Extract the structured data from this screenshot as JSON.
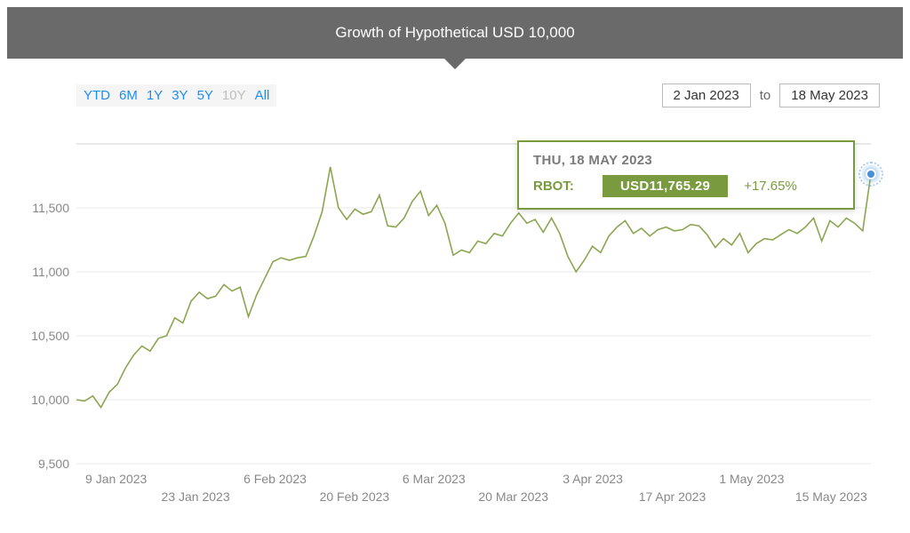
{
  "title": "Growth of Hypothetical USD 10,000",
  "range_buttons": [
    {
      "label": "YTD",
      "active": true,
      "disabled": false
    },
    {
      "label": "6M",
      "active": false,
      "disabled": false
    },
    {
      "label": "1Y",
      "active": false,
      "disabled": false
    },
    {
      "label": "3Y",
      "active": false,
      "disabled": false
    },
    {
      "label": "5Y",
      "active": false,
      "disabled": false
    },
    {
      "label": "10Y",
      "active": false,
      "disabled": true
    },
    {
      "label": "All",
      "active": false,
      "disabled": false
    }
  ],
  "date_from": "2 Jan 2023",
  "date_to_label": "to",
  "date_to": "18 May 2023",
  "chart": {
    "type": "line",
    "series_name": "RBOT",
    "line_color": "#8aa650",
    "line_width": 1.6,
    "background_color": "#ffffff",
    "grid_color": "#e8e8e8",
    "axis_text_color": "#888888",
    "axis_fontsize": 14,
    "ylim": [
      9500,
      12000
    ],
    "yticks": [
      9500,
      10000,
      10500,
      11000,
      11500
    ],
    "xticks": [
      "9 Jan 2023",
      "23 Jan 2023",
      "6 Feb 2023",
      "20 Feb 2023",
      "6 Mar 2023",
      "20 Mar 2023",
      "3 Apr 2023",
      "17 Apr 2023",
      "1 May 2023",
      "15 May 2023"
    ],
    "n_points": 98,
    "values": [
      10000,
      9990,
      10030,
      9940,
      10060,
      10120,
      10250,
      10350,
      10420,
      10380,
      10480,
      10500,
      10640,
      10600,
      10770,
      10840,
      10790,
      10810,
      10900,
      10850,
      10880,
      10650,
      10820,
      10950,
      11080,
      11110,
      11090,
      11110,
      11120,
      11280,
      11470,
      11820,
      11500,
      11410,
      11490,
      11450,
      11470,
      11600,
      11360,
      11350,
      11420,
      11550,
      11630,
      11440,
      11520,
      11380,
      11130,
      11170,
      11150,
      11240,
      11220,
      11300,
      11280,
      11380,
      11460,
      11380,
      11410,
      11310,
      11420,
      11300,
      11120,
      11000,
      11090,
      11200,
      11150,
      11280,
      11350,
      11400,
      11300,
      11340,
      11280,
      11330,
      11350,
      11320,
      11330,
      11370,
      11360,
      11290,
      11190,
      11260,
      11210,
      11300,
      11150,
      11220,
      11260,
      11250,
      11290,
      11330,
      11300,
      11350,
      11420,
      11240,
      11400,
      11350,
      11420,
      11380,
      11320,
      11765
    ]
  },
  "tooltip": {
    "date": "THU, 18 MAY 2023",
    "symbol": "RBOT:",
    "value": "USD11,765.29",
    "pct": "+17.65%",
    "border_color": "#7a9a3f",
    "value_bg": "#7a9a3f"
  },
  "marker": {
    "dot_color": "#4a90d9"
  }
}
